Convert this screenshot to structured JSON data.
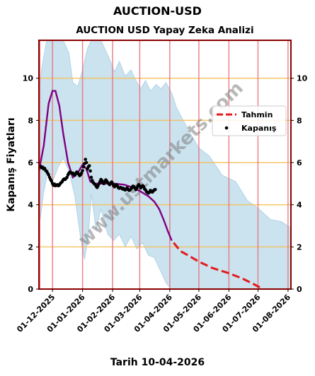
{
  "page": {
    "suptitle": "AUCTION-USD",
    "footer": "Tarih 10-04-2026"
  },
  "watermark": "www.ustmarkets.com",
  "colors": {
    "band": "#a9cfe5",
    "prediction": "#e41a1c",
    "trend": "#800080",
    "close": "#000000",
    "hline": "#f5c15a",
    "vline": "#e8707a",
    "border": "#8b0000",
    "legend_bg": "#ffffff"
  },
  "chart_data": {
    "type": "line",
    "title": "AUCTION USD Yapay Zeka Analizi",
    "xlabel": "",
    "ylabel": "Kapanış Fiyatları",
    "x_range": [
      "2025-11-17",
      "2026-08-04"
    ],
    "ylim": [
      0,
      11.8
    ],
    "yticks": [
      0,
      2,
      4,
      6,
      8,
      10
    ],
    "xticks": [
      "01-12-2025",
      "01-01-2026",
      "01-02-2026",
      "01-03-2026",
      "01-04-2026",
      "01-05-2026",
      "01-06-2026",
      "01-07-2026",
      "01-08-2026"
    ],
    "grid_y": [
      2,
      4,
      6,
      8,
      10
    ],
    "extra_vlines": [
      "2025-11-18"
    ],
    "legend": {
      "position": "right",
      "entries": [
        {
          "key": "prediction",
          "label": "Tahmin"
        },
        {
          "key": "close",
          "label": "Kapanış"
        }
      ]
    },
    "series": [
      {
        "key": "band",
        "kind": "band",
        "upper": [
          [
            "2025-11-17",
            9.2
          ],
          [
            "2025-11-20",
            10.5
          ],
          [
            "2025-11-25",
            11.8
          ],
          [
            "2025-12-12",
            11.8
          ],
          [
            "2025-12-18",
            11.2
          ],
          [
            "2025-12-22",
            9.8
          ],
          [
            "2025-12-27",
            9.6
          ],
          [
            "2026-01-01",
            10.4
          ],
          [
            "2026-01-06",
            11.4
          ],
          [
            "2026-01-10",
            11.8
          ],
          [
            "2026-01-20",
            11.8
          ],
          [
            "2026-01-28",
            11.0
          ],
          [
            "2026-02-03",
            10.3
          ],
          [
            "2026-02-08",
            10.8
          ],
          [
            "2026-02-14",
            10.1
          ],
          [
            "2026-02-20",
            10.4
          ],
          [
            "2026-02-25",
            9.9
          ],
          [
            "2026-03-02",
            9.5
          ],
          [
            "2026-03-07",
            9.9
          ],
          [
            "2026-03-12",
            9.4
          ],
          [
            "2026-03-18",
            9.7
          ],
          [
            "2026-03-23",
            9.5
          ],
          [
            "2026-03-28",
            9.8
          ],
          [
            "2026-04-03",
            9.3
          ],
          [
            "2026-04-08",
            8.6
          ],
          [
            "2026-04-15",
            8.0
          ],
          [
            "2026-04-22",
            7.4
          ],
          [
            "2026-05-01",
            6.7
          ],
          [
            "2026-05-12",
            6.3
          ],
          [
            "2026-05-25",
            5.4
          ],
          [
            "2026-06-08",
            5.1
          ],
          [
            "2026-06-20",
            4.2
          ],
          [
            "2026-07-02",
            3.8
          ],
          [
            "2026-07-14",
            3.3
          ],
          [
            "2026-07-25",
            3.2
          ],
          [
            "2026-08-04",
            2.9
          ]
        ],
        "lower": [
          [
            "2025-11-17",
            2.8
          ],
          [
            "2025-11-22",
            4.6
          ],
          [
            "2025-11-27",
            5.7
          ],
          [
            "2025-12-02",
            5.2
          ],
          [
            "2025-12-07",
            5.8
          ],
          [
            "2025-12-12",
            6.2
          ],
          [
            "2025-12-18",
            5.6
          ],
          [
            "2025-12-24",
            4.4
          ],
          [
            "2025-12-30",
            2.4
          ],
          [
            "2026-01-03",
            1.4
          ],
          [
            "2026-01-07",
            2.5
          ],
          [
            "2026-01-10",
            4.5
          ],
          [
            "2026-01-15",
            2.8
          ],
          [
            "2026-01-20",
            3.8
          ],
          [
            "2026-01-27",
            2.6
          ],
          [
            "2026-02-02",
            2.3
          ],
          [
            "2026-02-08",
            2.6
          ],
          [
            "2026-02-14",
            2.0
          ],
          [
            "2026-02-20",
            2.5
          ],
          [
            "2026-02-26",
            1.9
          ],
          [
            "2026-03-04",
            2.2
          ],
          [
            "2026-03-10",
            1.6
          ],
          [
            "2026-03-16",
            1.5
          ],
          [
            "2026-03-22",
            0.9
          ],
          [
            "2026-03-28",
            0.3
          ],
          [
            "2026-04-02",
            0.0
          ],
          [
            "2026-08-04",
            0.0
          ]
        ]
      },
      {
        "key": "trend",
        "kind": "line",
        "points": [
          [
            "2025-11-17",
            5.6
          ],
          [
            "2025-11-22",
            6.8
          ],
          [
            "2025-11-27",
            8.8
          ],
          [
            "2025-12-01",
            9.4
          ],
          [
            "2025-12-04",
            9.4
          ],
          [
            "2025-12-08",
            8.7
          ],
          [
            "2025-12-12",
            7.4
          ],
          [
            "2025-12-17",
            6.0
          ],
          [
            "2025-12-22",
            5.3
          ],
          [
            "2025-12-27",
            5.5
          ],
          [
            "2026-01-01",
            5.9
          ],
          [
            "2026-01-05",
            5.7
          ],
          [
            "2026-01-09",
            5.1
          ],
          [
            "2026-01-14",
            5.0
          ],
          [
            "2026-01-24",
            5.0
          ],
          [
            "2026-02-03",
            5.0
          ],
          [
            "2026-02-13",
            4.95
          ],
          [
            "2026-02-23",
            4.8
          ],
          [
            "2026-03-03",
            4.6
          ],
          [
            "2026-03-10",
            4.4
          ],
          [
            "2026-03-16",
            4.15
          ],
          [
            "2026-03-21",
            3.8
          ],
          [
            "2026-03-26",
            3.25
          ],
          [
            "2026-03-30",
            2.75
          ],
          [
            "2026-04-03",
            2.3
          ]
        ]
      },
      {
        "key": "prediction",
        "kind": "line",
        "points": [
          [
            "2026-04-05",
            2.2
          ],
          [
            "2026-04-12",
            1.8
          ],
          [
            "2026-04-20",
            1.6
          ],
          [
            "2026-05-01",
            1.3
          ],
          [
            "2026-05-15",
            1.0
          ],
          [
            "2026-06-01",
            0.75
          ],
          [
            "2026-06-15",
            0.5
          ],
          [
            "2026-06-28",
            0.2
          ],
          [
            "2026-07-06",
            0.0
          ]
        ]
      },
      {
        "key": "close",
        "kind": "scatter",
        "points": [
          [
            "2025-11-18",
            5.8
          ],
          [
            "2025-11-19",
            5.82
          ],
          [
            "2025-11-20",
            5.75
          ],
          [
            "2025-11-21",
            5.78
          ],
          [
            "2025-11-22",
            5.7
          ],
          [
            "2025-11-23",
            5.72
          ],
          [
            "2025-11-24",
            5.62
          ],
          [
            "2025-11-25",
            5.58
          ],
          [
            "2025-11-26",
            5.5
          ],
          [
            "2025-11-27",
            5.42
          ],
          [
            "2025-11-28",
            5.3
          ],
          [
            "2025-11-29",
            5.2
          ],
          [
            "2025-11-30",
            5.12
          ],
          [
            "2025-12-01",
            5.0
          ],
          [
            "2025-12-02",
            4.92
          ],
          [
            "2025-12-03",
            4.98
          ],
          [
            "2025-12-04",
            4.9
          ],
          [
            "2025-12-05",
            4.92
          ],
          [
            "2025-12-06",
            4.95
          ],
          [
            "2025-12-07",
            4.9
          ],
          [
            "2025-12-08",
            4.93
          ],
          [
            "2025-12-09",
            5.0
          ],
          [
            "2025-12-10",
            5.05
          ],
          [
            "2025-12-11",
            5.1
          ],
          [
            "2025-12-12",
            5.18
          ],
          [
            "2025-12-13",
            5.22
          ],
          [
            "2025-12-14",
            5.2
          ],
          [
            "2025-12-15",
            5.25
          ],
          [
            "2025-12-16",
            5.3
          ],
          [
            "2025-12-17",
            5.42
          ],
          [
            "2025-12-18",
            5.5
          ],
          [
            "2025-12-19",
            5.55
          ],
          [
            "2025-12-20",
            5.52
          ],
          [
            "2025-12-21",
            5.48
          ],
          [
            "2025-12-22",
            5.5
          ],
          [
            "2025-12-23",
            5.45
          ],
          [
            "2025-12-24",
            5.4
          ],
          [
            "2025-12-25",
            5.48
          ],
          [
            "2025-12-26",
            5.55
          ],
          [
            "2025-12-27",
            5.5
          ],
          [
            "2025-12-28",
            5.45
          ],
          [
            "2025-12-29",
            5.38
          ],
          [
            "2025-12-30",
            5.42
          ],
          [
            "2025-12-31",
            5.5
          ],
          [
            "2026-01-01",
            5.62
          ],
          [
            "2026-01-02",
            5.8
          ],
          [
            "2026-01-03",
            5.95
          ],
          [
            "2026-01-04",
            6.15
          ],
          [
            "2026-01-05",
            6.0
          ],
          [
            "2026-01-06",
            5.7
          ],
          [
            "2026-01-07",
            5.8
          ],
          [
            "2026-01-08",
            5.85
          ],
          [
            "2026-01-09",
            5.6
          ],
          [
            "2026-01-10",
            5.3
          ],
          [
            "2026-01-11",
            5.15
          ],
          [
            "2026-01-12",
            5.05
          ],
          [
            "2026-01-13",
            5.0
          ],
          [
            "2026-01-14",
            4.95
          ],
          [
            "2026-01-15",
            4.88
          ],
          [
            "2026-01-16",
            4.82
          ],
          [
            "2026-01-17",
            4.9
          ],
          [
            "2026-01-18",
            5.0
          ],
          [
            "2026-01-19",
            5.1
          ],
          [
            "2026-01-20",
            5.2
          ],
          [
            "2026-01-21",
            5.15
          ],
          [
            "2026-01-22",
            5.05
          ],
          [
            "2026-01-23",
            5.0
          ],
          [
            "2026-01-24",
            5.1
          ],
          [
            "2026-01-25",
            5.18
          ],
          [
            "2026-01-26",
            5.12
          ],
          [
            "2026-01-27",
            5.05
          ],
          [
            "2026-01-28",
            5.0
          ],
          [
            "2026-01-29",
            4.95
          ],
          [
            "2026-01-30",
            5.02
          ],
          [
            "2026-01-31",
            5.08
          ],
          [
            "2026-02-01",
            5.0
          ],
          [
            "2026-02-02",
            4.9
          ],
          [
            "2026-02-03",
            4.85
          ],
          [
            "2026-02-04",
            4.9
          ],
          [
            "2026-02-05",
            4.95
          ],
          [
            "2026-02-06",
            4.88
          ],
          [
            "2026-02-07",
            4.8
          ],
          [
            "2026-02-08",
            4.78
          ],
          [
            "2026-02-09",
            4.82
          ],
          [
            "2026-02-10",
            4.8
          ],
          [
            "2026-02-11",
            4.75
          ],
          [
            "2026-02-12",
            4.78
          ],
          [
            "2026-02-13",
            4.72
          ],
          [
            "2026-02-14",
            4.7
          ],
          [
            "2026-02-15",
            4.75
          ],
          [
            "2026-02-16",
            4.8
          ],
          [
            "2026-02-17",
            4.72
          ],
          [
            "2026-02-18",
            4.68
          ],
          [
            "2026-02-19",
            4.7
          ],
          [
            "2026-02-20",
            4.75
          ],
          [
            "2026-02-21",
            4.82
          ],
          [
            "2026-02-22",
            4.88
          ],
          [
            "2026-02-23",
            4.85
          ],
          [
            "2026-02-24",
            4.78
          ],
          [
            "2026-02-25",
            4.72
          ],
          [
            "2026-02-26",
            4.8
          ],
          [
            "2026-02-27",
            4.9
          ],
          [
            "2026-02-28",
            4.95
          ],
          [
            "2026-03-01",
            4.88
          ],
          [
            "2026-03-02",
            4.8
          ],
          [
            "2026-03-03",
            4.85
          ],
          [
            "2026-03-04",
            4.9
          ],
          [
            "2026-03-05",
            4.85
          ],
          [
            "2026-03-06",
            4.75
          ],
          [
            "2026-03-07",
            4.7
          ],
          [
            "2026-03-08",
            4.62
          ],
          [
            "2026-03-09",
            4.58
          ],
          [
            "2026-03-10",
            4.55
          ],
          [
            "2026-03-11",
            4.6
          ],
          [
            "2026-03-12",
            4.68
          ],
          [
            "2026-03-13",
            4.62
          ],
          [
            "2026-03-14",
            4.6
          ],
          [
            "2026-03-15",
            4.65
          ],
          [
            "2026-03-16",
            4.7
          ],
          [
            "2026-03-17",
            4.72
          ]
        ]
      }
    ]
  }
}
